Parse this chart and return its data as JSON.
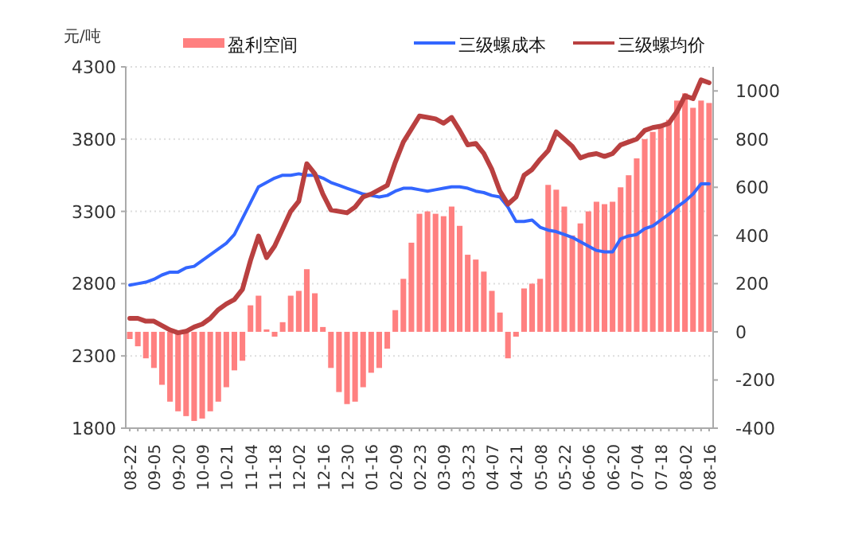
{
  "chart_data": {
    "type": "bar",
    "ylabel": "元/吨",
    "categories": [
      "08-22",
      null,
      null,
      "09-05",
      null,
      null,
      "09-20",
      null,
      null,
      "10-09",
      null,
      null,
      "10-21",
      null,
      null,
      "11-04",
      null,
      null,
      "11-18",
      null,
      null,
      "12-02",
      null,
      null,
      "12-16",
      null,
      null,
      "12-30",
      null,
      null,
      "01-16",
      null,
      null,
      "02-09",
      null,
      null,
      "02-23",
      null,
      null,
      "03-09",
      null,
      null,
      "03-23",
      null,
      null,
      "04-07",
      null,
      null,
      "04-21",
      null,
      null,
      "05-08",
      null,
      null,
      "05-22",
      null,
      null,
      "06-06",
      null,
      null,
      "06-20",
      null,
      null,
      "07-04",
      null,
      null,
      "07-18",
      null,
      null,
      "08-02",
      null,
      null,
      "08-16"
    ],
    "series": [
      {
        "name": "盈利空间",
        "axis": "y2",
        "color": "#ff8080",
        "values": [
          -30,
          -60,
          -110,
          -150,
          -220,
          -290,
          -330,
          -350,
          -370,
          -360,
          -330,
          -290,
          -230,
          -160,
          -120,
          110,
          150,
          10,
          -20,
          40,
          150,
          170,
          260,
          160,
          20,
          -150,
          -250,
          -300,
          -290,
          -230,
          -170,
          -150,
          -70,
          90,
          220,
          370,
          490,
          500,
          490,
          480,
          520,
          440,
          320,
          300,
          250,
          170,
          80,
          -110,
          -20,
          180,
          200,
          220,
          610,
          590,
          520,
          400,
          450,
          500,
          540,
          530,
          540,
          600,
          650,
          720,
          800,
          830,
          850,
          880,
          960,
          990,
          930,
          960,
          950
        ]
      },
      {
        "name": "三级螺成本",
        "type": "line",
        "color": "#3366ff",
        "values": [
          2790,
          2800,
          2810,
          2830,
          2860,
          2880,
          2880,
          2910,
          2920,
          2960,
          3000,
          3040,
          3080,
          3140,
          3250,
          3360,
          3470,
          3500,
          3530,
          3550,
          3550,
          3560,
          3550,
          3550,
          3530,
          3500,
          3480,
          3460,
          3440,
          3420,
          3410,
          3400,
          3410,
          3440,
          3460,
          3460,
          3450,
          3440,
          3450,
          3460,
          3470,
          3470,
          3460,
          3440,
          3430,
          3410,
          3400,
          3330,
          3230,
          3230,
          3240,
          3190,
          3170,
          3160,
          3140,
          3120,
          3090,
          3060,
          3030,
          3020,
          3020,
          3110,
          3130,
          3140,
          3180,
          3200,
          3240,
          3280,
          3330,
          3370,
          3420,
          3490,
          3490
        ]
      },
      {
        "name": "三级螺均价",
        "type": "line",
        "color": "#b94040",
        "values": [
          2560,
          2560,
          2540,
          2540,
          2510,
          2480,
          2460,
          2470,
          2500,
          2520,
          2560,
          2620,
          2660,
          2690,
          2760,
          2960,
          3130,
          2980,
          3060,
          3180,
          3300,
          3370,
          3630,
          3560,
          3420,
          3310,
          3300,
          3290,
          3330,
          3400,
          3420,
          3450,
          3480,
          3640,
          3780,
          3870,
          3960,
          3950,
          3940,
          3910,
          3950,
          3860,
          3760,
          3770,
          3700,
          3590,
          3440,
          3350,
          3400,
          3550,
          3590,
          3660,
          3720,
          3850,
          3800,
          3750,
          3670,
          3690,
          3700,
          3680,
          3700,
          3760,
          3780,
          3800,
          3860,
          3880,
          3890,
          3910,
          3990,
          4100,
          4080,
          4210,
          4190
        ]
      }
    ],
    "ylim": [
      1800,
      4300
    ],
    "yticks": [
      1800,
      2300,
      2800,
      3300,
      3800,
      4300
    ],
    "y2lim": [
      -400,
      1100
    ],
    "y2ticks": [
      -400,
      -200,
      0,
      200,
      400,
      600,
      800,
      1000
    ],
    "grid": "y",
    "legend": "top"
  }
}
